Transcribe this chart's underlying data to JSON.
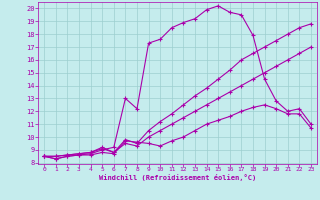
{
  "xlabel": "Windchill (Refroidissement éolien,°C)",
  "bg_color": "#c5eced",
  "line_color": "#aa00aa",
  "grid_color": "#9dcfcf",
  "xlim_min": -0.5,
  "xlim_max": 23.5,
  "ylim_min": 7.9,
  "ylim_max": 20.5,
  "xticks": [
    0,
    1,
    2,
    3,
    4,
    5,
    6,
    7,
    8,
    9,
    10,
    11,
    12,
    13,
    14,
    15,
    16,
    17,
    18,
    19,
    20,
    21,
    22,
    23
  ],
  "yticks": [
    8,
    9,
    10,
    11,
    12,
    13,
    14,
    15,
    16,
    17,
    18,
    19,
    20
  ],
  "line1_x": [
    0,
    1,
    2,
    3,
    4,
    5,
    6,
    7,
    8,
    9,
    10,
    11,
    12,
    13,
    14,
    15,
    16,
    17,
    18,
    19,
    20,
    21,
    22,
    23
  ],
  "line1_y": [
    8.5,
    8.3,
    8.5,
    8.6,
    8.6,
    8.8,
    8.7,
    9.7,
    9.6,
    9.5,
    9.3,
    9.7,
    10.0,
    10.5,
    11.0,
    11.3,
    11.6,
    12.0,
    12.3,
    12.5,
    12.2,
    11.8,
    11.8,
    10.7
  ],
  "line2_x": [
    0,
    1,
    2,
    3,
    4,
    5,
    6,
    7,
    8,
    9,
    10,
    11,
    12,
    13,
    14,
    15,
    16,
    17,
    18,
    19,
    20,
    21,
    22,
    23
  ],
  "line2_y": [
    8.5,
    8.3,
    8.5,
    8.6,
    8.7,
    9.0,
    9.2,
    13.0,
    12.2,
    17.3,
    17.6,
    18.5,
    18.9,
    19.2,
    19.9,
    20.2,
    19.7,
    19.5,
    17.9,
    14.5,
    12.8,
    12.0,
    12.2,
    11.0
  ],
  "line3_x": [
    0,
    1,
    2,
    3,
    4,
    5,
    6,
    7,
    8,
    9,
    10,
    11,
    12,
    13,
    14,
    15,
    16,
    17,
    18,
    19,
    20,
    21,
    22,
    23
  ],
  "line3_y": [
    8.5,
    8.5,
    8.6,
    8.7,
    8.8,
    9.2,
    8.8,
    9.8,
    9.5,
    10.5,
    11.2,
    11.8,
    12.5,
    13.2,
    13.8,
    14.5,
    15.2,
    16.0,
    16.5,
    17.0,
    17.5,
    18.0,
    18.5,
    18.8
  ],
  "line4_x": [
    0,
    1,
    2,
    3,
    4,
    5,
    6,
    7,
    8,
    9,
    10,
    11,
    12,
    13,
    14,
    15,
    16,
    17,
    18,
    19,
    20,
    21,
    22,
    23
  ],
  "line4_y": [
    8.5,
    8.5,
    8.6,
    8.7,
    8.8,
    9.1,
    8.8,
    9.5,
    9.3,
    10.0,
    10.5,
    11.0,
    11.5,
    12.0,
    12.5,
    13.0,
    13.5,
    14.0,
    14.5,
    15.0,
    15.5,
    16.0,
    16.5,
    17.0
  ],
  "marker": "+",
  "markersize": 3,
  "linewidth": 0.8
}
